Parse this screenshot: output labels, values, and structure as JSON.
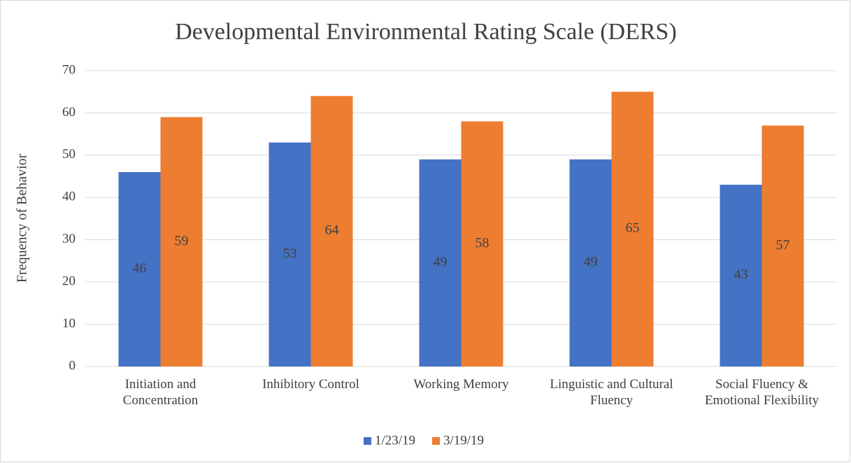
{
  "chart_data": {
    "type": "bar",
    "title": "Developmental Environmental Rating Scale (DERS)",
    "y_label": "Frequency of Behavior",
    "categories": [
      "Initiation and Concentration",
      "Inhibitory Control",
      "Working Memory",
      "Linguistic and Cultural Fluency",
      "Social Fluency & Emotional Flexibility"
    ],
    "series": [
      {
        "name": "1/23/19",
        "color": "#4472c4",
        "values": [
          46,
          53,
          49,
          49,
          43
        ]
      },
      {
        "name": "3/19/19",
        "color": "#ed7d31",
        "values": [
          59,
          64,
          58,
          65,
          57
        ]
      }
    ],
    "ylim": [
      0,
      70
    ],
    "yticks": [
      0,
      10,
      20,
      30,
      40,
      50,
      60,
      70
    ],
    "grid": true,
    "legend": "bottom",
    "data_labels": true
  }
}
